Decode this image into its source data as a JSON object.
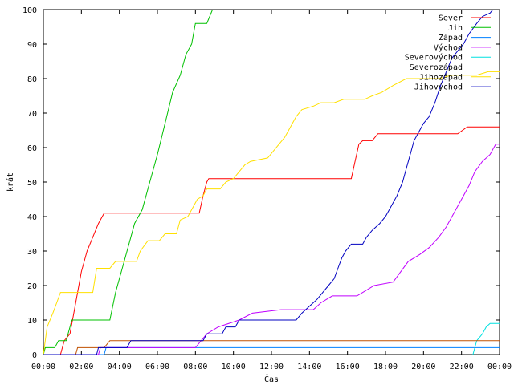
{
  "chart_data": {
    "type": "line",
    "title": "",
    "xlabel": "Čas",
    "ylabel": "krát",
    "xlim": [
      0,
      24
    ],
    "ylim": [
      0,
      100
    ],
    "grid": false,
    "legend_position": "top-right",
    "x_ticks": [
      {
        "value": 0,
        "label": "00:00"
      },
      {
        "value": 2,
        "label": "02:00"
      },
      {
        "value": 4,
        "label": "04:00"
      },
      {
        "value": 6,
        "label": "06:00"
      },
      {
        "value": 8,
        "label": "08:00"
      },
      {
        "value": 10,
        "label": "10:00"
      },
      {
        "value": 12,
        "label": "12:00"
      },
      {
        "value": 14,
        "label": "14:00"
      },
      {
        "value": 16,
        "label": "16:00"
      },
      {
        "value": 18,
        "label": "18:00"
      },
      {
        "value": 20,
        "label": "20:00"
      },
      {
        "value": 22,
        "label": "22:00"
      },
      {
        "value": 24,
        "label": "00:00"
      }
    ],
    "y_ticks": [
      {
        "value": 0,
        "label": "0"
      },
      {
        "value": 10,
        "label": "10"
      },
      {
        "value": 20,
        "label": "20"
      },
      {
        "value": 30,
        "label": "30"
      },
      {
        "value": 40,
        "label": "40"
      },
      {
        "value": 50,
        "label": "50"
      },
      {
        "value": 60,
        "label": "60"
      },
      {
        "value": 70,
        "label": "70"
      },
      {
        "value": 80,
        "label": "80"
      },
      {
        "value": 90,
        "label": "90"
      },
      {
        "value": 100,
        "label": "100"
      }
    ],
    "series": [
      {
        "name": "Sever",
        "color": "#ff0000",
        "points": [
          [
            0.9,
            0
          ],
          [
            1.1,
            4
          ],
          [
            1.4,
            6
          ],
          [
            1.6,
            12
          ],
          [
            1.8,
            18
          ],
          [
            2.0,
            24
          ],
          [
            2.3,
            30
          ],
          [
            2.6,
            34
          ],
          [
            2.9,
            38
          ],
          [
            3.2,
            41
          ],
          [
            6.0,
            41
          ],
          [
            8.2,
            41
          ],
          [
            8.4,
            46
          ],
          [
            8.6,
            50
          ],
          [
            8.7,
            51
          ],
          [
            12.0,
            51
          ],
          [
            16.2,
            51
          ],
          [
            16.4,
            56
          ],
          [
            16.6,
            61
          ],
          [
            16.8,
            62
          ],
          [
            17.3,
            62
          ],
          [
            17.6,
            64
          ],
          [
            21.8,
            64
          ],
          [
            22.3,
            66
          ],
          [
            24.0,
            66
          ]
        ]
      },
      {
        "name": "Jih",
        "color": "#00c000",
        "points": [
          [
            0.0,
            0
          ],
          [
            0.1,
            2
          ],
          [
            0.6,
            2
          ],
          [
            0.8,
            4
          ],
          [
            1.2,
            4
          ],
          [
            1.5,
            10
          ],
          [
            3.5,
            10
          ],
          [
            3.8,
            18
          ],
          [
            4.3,
            28
          ],
          [
            4.8,
            38
          ],
          [
            5.2,
            42
          ],
          [
            5.6,
            50
          ],
          [
            6.0,
            58
          ],
          [
            6.4,
            67
          ],
          [
            6.8,
            76
          ],
          [
            7.2,
            81
          ],
          [
            7.5,
            87
          ],
          [
            7.8,
            90
          ],
          [
            8.0,
            96
          ],
          [
            8.6,
            96
          ],
          [
            8.9,
            100
          ],
          [
            9.1,
            101
          ]
        ]
      },
      {
        "name": "Západ",
        "color": "#0080ff",
        "points": [
          [
            0.0,
            0
          ],
          [
            3.2,
            0
          ],
          [
            3.3,
            2
          ],
          [
            22.8,
            2
          ],
          [
            23.0,
            2
          ],
          [
            24.0,
            2
          ]
        ]
      },
      {
        "name": "Východ",
        "color": "#c000ff",
        "points": [
          [
            0.0,
            0
          ],
          [
            2.9,
            0
          ],
          [
            3.0,
            2
          ],
          [
            8.0,
            2
          ],
          [
            8.3,
            4
          ],
          [
            8.6,
            6
          ],
          [
            9.2,
            8
          ],
          [
            10.3,
            10
          ],
          [
            11.0,
            12
          ],
          [
            12.5,
            13
          ],
          [
            14.2,
            13
          ],
          [
            14.6,
            15
          ],
          [
            15.2,
            17
          ],
          [
            16.5,
            17
          ],
          [
            17.1,
            19
          ],
          [
            17.4,
            20
          ],
          [
            18.4,
            21
          ],
          [
            18.8,
            24
          ],
          [
            19.2,
            27
          ],
          [
            19.8,
            29
          ],
          [
            20.3,
            31
          ],
          [
            20.8,
            34
          ],
          [
            21.2,
            37
          ],
          [
            21.5,
            40
          ],
          [
            21.8,
            43
          ],
          [
            22.1,
            46
          ],
          [
            22.4,
            49
          ],
          [
            22.7,
            53
          ],
          [
            23.1,
            56
          ],
          [
            23.5,
            58
          ],
          [
            23.8,
            61
          ],
          [
            24.0,
            61
          ]
        ]
      },
      {
        "name": "Severovýchod",
        "color": "#00e0e0",
        "points": [
          [
            22.6,
            0
          ],
          [
            22.8,
            4
          ],
          [
            23.1,
            6
          ],
          [
            23.3,
            8
          ],
          [
            23.5,
            9
          ],
          [
            24.0,
            9
          ]
        ]
      },
      {
        "name": "Severozápad",
        "color": "#c05000",
        "points": [
          [
            0.0,
            0
          ],
          [
            1.7,
            0
          ],
          [
            1.8,
            2
          ],
          [
            3.2,
            2
          ],
          [
            3.5,
            4
          ],
          [
            24.0,
            4
          ]
        ]
      },
      {
        "name": "Jihozápad",
        "color": "#ffe000",
        "points": [
          [
            0.0,
            0
          ],
          [
            0.2,
            8
          ],
          [
            0.5,
            12
          ],
          [
            0.7,
            15
          ],
          [
            0.9,
            18
          ],
          [
            2.6,
            18
          ],
          [
            2.8,
            25
          ],
          [
            3.5,
            25
          ],
          [
            3.8,
            27
          ],
          [
            4.9,
            27
          ],
          [
            5.1,
            30
          ],
          [
            5.5,
            33
          ],
          [
            6.1,
            33
          ],
          [
            6.4,
            35
          ],
          [
            7.0,
            35
          ],
          [
            7.2,
            39
          ],
          [
            7.6,
            40
          ],
          [
            7.9,
            43
          ],
          [
            8.1,
            45
          ],
          [
            8.4,
            46
          ],
          [
            8.6,
            48
          ],
          [
            9.3,
            48
          ],
          [
            9.6,
            50
          ],
          [
            10.0,
            51
          ],
          [
            10.3,
            53
          ],
          [
            10.6,
            55
          ],
          [
            10.9,
            56
          ],
          [
            11.8,
            57
          ],
          [
            12.1,
            59
          ],
          [
            12.4,
            61
          ],
          [
            12.7,
            63
          ],
          [
            13.0,
            66
          ],
          [
            13.3,
            69
          ],
          [
            13.6,
            71
          ],
          [
            14.2,
            72
          ],
          [
            14.6,
            73
          ],
          [
            15.3,
            73
          ],
          [
            15.8,
            74
          ],
          [
            16.9,
            74
          ],
          [
            17.3,
            75
          ],
          [
            17.8,
            76
          ],
          [
            18.4,
            78
          ],
          [
            19.1,
            80
          ],
          [
            20.8,
            80
          ],
          [
            21.5,
            81
          ],
          [
            22.8,
            81
          ],
          [
            23.4,
            82
          ],
          [
            24.0,
            82
          ]
        ]
      },
      {
        "name": "Jihovýchod",
        "color": "#0000c0",
        "points": [
          [
            0.0,
            0
          ],
          [
            2.8,
            0
          ],
          [
            2.9,
            2
          ],
          [
            4.4,
            2
          ],
          [
            4.6,
            4
          ],
          [
            8.4,
            4
          ],
          [
            8.6,
            6
          ],
          [
            9.4,
            6
          ],
          [
            9.6,
            8
          ],
          [
            10.1,
            8
          ],
          [
            10.3,
            10
          ],
          [
            13.3,
            10
          ],
          [
            13.6,
            12
          ],
          [
            14.0,
            14
          ],
          [
            14.4,
            16
          ],
          [
            14.7,
            18
          ],
          [
            15.0,
            20
          ],
          [
            15.3,
            22
          ],
          [
            15.5,
            25
          ],
          [
            15.7,
            28
          ],
          [
            15.9,
            30
          ],
          [
            16.2,
            32
          ],
          [
            16.8,
            32
          ],
          [
            17.0,
            34
          ],
          [
            17.3,
            36
          ],
          [
            17.7,
            38
          ],
          [
            18.0,
            40
          ],
          [
            18.3,
            43
          ],
          [
            18.6,
            46
          ],
          [
            18.9,
            50
          ],
          [
            19.1,
            54
          ],
          [
            19.3,
            58
          ],
          [
            19.5,
            62
          ],
          [
            19.8,
            65
          ],
          [
            20.0,
            67
          ],
          [
            20.3,
            69
          ],
          [
            20.6,
            73
          ],
          [
            20.9,
            78
          ],
          [
            21.2,
            82
          ],
          [
            21.5,
            86
          ],
          [
            21.8,
            88
          ],
          [
            22.1,
            90
          ],
          [
            22.4,
            93
          ],
          [
            22.8,
            96
          ],
          [
            23.1,
            98
          ],
          [
            23.5,
            99
          ],
          [
            23.8,
            101
          ]
        ]
      }
    ]
  }
}
